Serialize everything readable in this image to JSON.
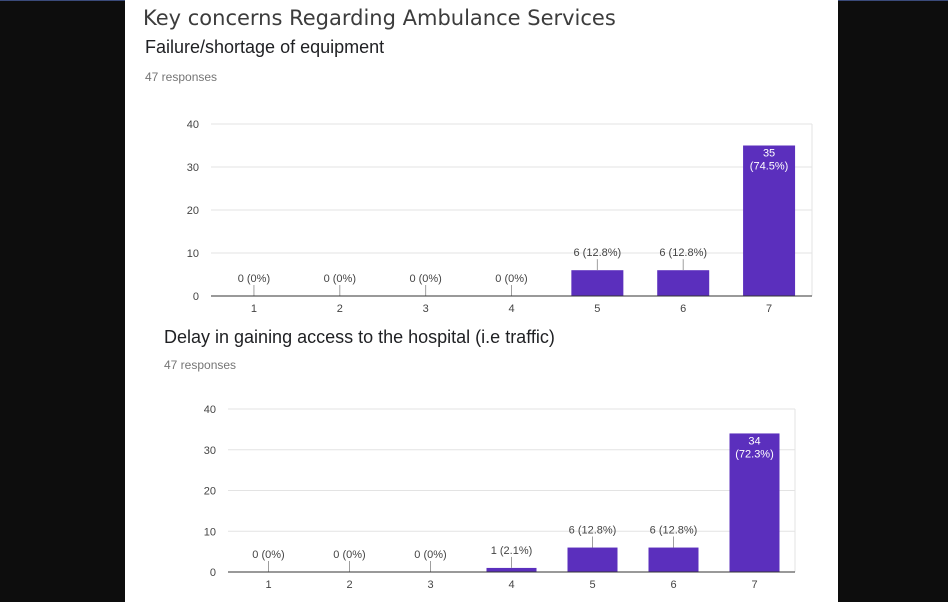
{
  "page": {
    "title": "Key concerns Regarding Ambulance Services"
  },
  "colors": {
    "bar": "#5b2fbd",
    "background": "#0d0d0d",
    "panel": "#ffffff",
    "accent_line": "#3a4a7a"
  },
  "chart_data": [
    {
      "type": "bar",
      "title": "Failure/shortage of equipment",
      "responses": "47 responses",
      "categories": [
        "1",
        "2",
        "3",
        "4",
        "5",
        "6",
        "7"
      ],
      "values": [
        0,
        0,
        0,
        0,
        6,
        6,
        35
      ],
      "data_labels": [
        "0 (0%)",
        "0 (0%)",
        "0 (0%)",
        "0 (0%)",
        "6 (12.8%)",
        "6 (12.8%)",
        "35 (74.5%)"
      ],
      "yticks": [
        "0",
        "10",
        "20",
        "30",
        "40"
      ],
      "ylim": [
        0,
        40
      ],
      "grid": true,
      "color": "#5b2fbd"
    },
    {
      "type": "bar",
      "title": "Delay in gaining access to the hospital (i.e traffic)",
      "responses": "47 responses",
      "categories": [
        "1",
        "2",
        "3",
        "4",
        "5",
        "6",
        "7"
      ],
      "values": [
        0,
        0,
        0,
        1,
        6,
        6,
        34
      ],
      "data_labels": [
        "0 (0%)",
        "0 (0%)",
        "0 (0%)",
        "1 (2.1%)",
        "6 (12.8%)",
        "6 (12.8%)",
        "34 (72.3%)"
      ],
      "yticks": [
        "0",
        "10",
        "20",
        "30",
        "40"
      ],
      "ylim": [
        0,
        40
      ],
      "grid": true,
      "color": "#5b2fbd"
    }
  ]
}
